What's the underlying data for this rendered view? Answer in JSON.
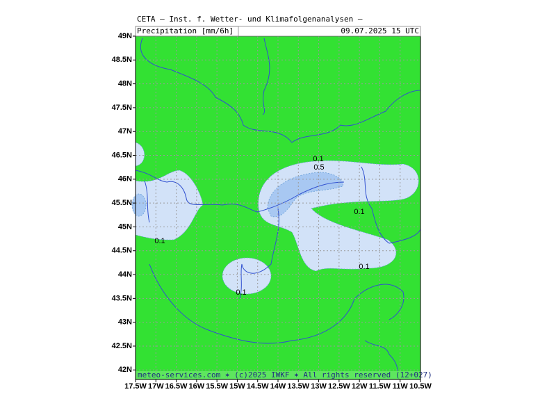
{
  "header": {
    "title": "CETA — Inst. f. Wetter- und Klimafolgenanalysen —",
    "field": "Precipitation [mm/6h]",
    "valid": "09.07.2025 15 UTC"
  },
  "map": {
    "xlim": [
      -17.5,
      -10.5
    ],
    "ylim": [
      41.8,
      49
    ],
    "xticks": [
      {
        "value": -17.5,
        "label": "17.5W"
      },
      {
        "value": -17,
        "label": "17W"
      },
      {
        "value": -16.5,
        "label": "16.5W"
      },
      {
        "value": -16,
        "label": "16W"
      },
      {
        "value": -15.5,
        "label": "15.5W"
      },
      {
        "value": -15,
        "label": "15W"
      },
      {
        "value": -14.5,
        "label": "14.5W"
      },
      {
        "value": -14,
        "label": "14W"
      },
      {
        "value": -13.5,
        "label": "13.5W"
      },
      {
        "value": -13,
        "label": "13W"
      },
      {
        "value": -12.5,
        "label": "12.5W"
      },
      {
        "value": -12,
        "label": "12W"
      },
      {
        "value": -11.5,
        "label": "11.5W"
      },
      {
        "value": -11,
        "label": "11W"
      },
      {
        "value": -10.5,
        "label": "10.5W"
      }
    ],
    "yticks": [
      {
        "value": 49,
        "label": "49N"
      },
      {
        "value": 48.5,
        "label": "48.5N"
      },
      {
        "value": 48,
        "label": "48N"
      },
      {
        "value": 47.5,
        "label": "47.5N"
      },
      {
        "value": 47,
        "label": "47N"
      },
      {
        "value": 46.5,
        "label": "46.5N"
      },
      {
        "value": 46,
        "label": "46N"
      },
      {
        "value": 45.5,
        "label": "45.5N"
      },
      {
        "value": 45,
        "label": "45N"
      },
      {
        "value": 44.5,
        "label": "44.5N"
      },
      {
        "value": 44,
        "label": "44N"
      },
      {
        "value": 43.5,
        "label": "43.5N"
      },
      {
        "value": 43,
        "label": "43N"
      },
      {
        "value": 42.5,
        "label": "42.5N"
      },
      {
        "value": 42,
        "label": "42N"
      }
    ],
    "grid": true,
    "background": "#33e133"
  },
  "contour_labels": [
    "0.1",
    "0.5",
    "0.1",
    "0.1",
    "0.1",
    "0.1"
  ],
  "footer": "meteo-services.com ✶ (c)2025 IWKF ✶ All rights reserved (12+027)"
}
